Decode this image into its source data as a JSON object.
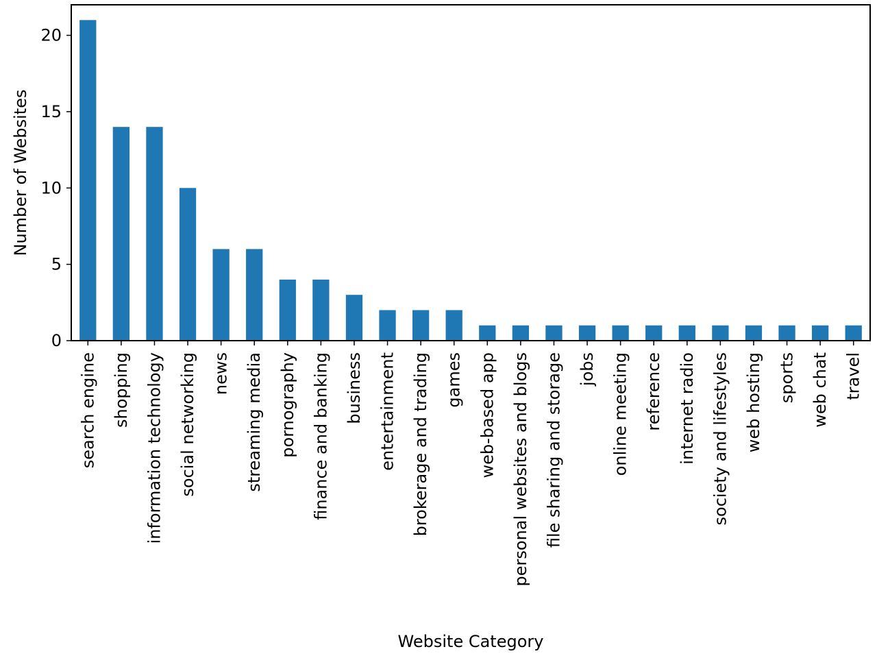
{
  "chart_data": {
    "type": "bar",
    "title": "",
    "xlabel": "Website Category",
    "ylabel": "Number of Websites",
    "ylim": [
      0,
      22
    ],
    "yticks": [
      0,
      5,
      10,
      15,
      20
    ],
    "grid": false,
    "bar_color": "#1f77b4",
    "categories": [
      "search engine",
      "shopping",
      "information technology",
      "social networking",
      "news",
      "streaming media",
      "pornography",
      "finance and banking",
      "business",
      "entertainment",
      "brokerage and trading",
      "games",
      "web-based app",
      "personal websites and blogs",
      "file sharing and storage",
      "jobs",
      "online meeting",
      "reference",
      "internet radio",
      "society and lifestyles",
      "web hosting",
      "sports",
      "web chat",
      "travel"
    ],
    "values": [
      21,
      14,
      14,
      10,
      6,
      6,
      4,
      4,
      3,
      2,
      2,
      2,
      1,
      1,
      1,
      1,
      1,
      1,
      1,
      1,
      1,
      1,
      1,
      1
    ]
  }
}
